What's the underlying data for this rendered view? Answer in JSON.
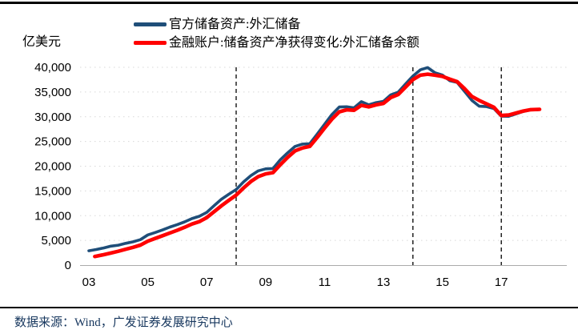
{
  "footer": {
    "source": "数据来源：Wind，广发证券发展研究中心"
  },
  "legend": {
    "items": [
      {
        "label": "官方储备资产:外汇储备",
        "color": "#1F4E79"
      },
      {
        "label": "金融账户:储备资产净获得变化:外汇储备余额",
        "color": "#FF0000"
      }
    ]
  },
  "chart_data": {
    "type": "line",
    "title": "",
    "unit_label": "亿美元",
    "xlabel": "",
    "ylabel": "亿美元",
    "ylim": [
      0,
      40000
    ],
    "xlim": [
      2002.7,
      2018.6
    ],
    "grid": "dotted-horizontal",
    "legend_position": "top-center",
    "dashed_vlines": [
      2008,
      2014,
      2017
    ],
    "y_axis": {
      "tick_values": [
        0,
        5000,
        10000,
        15000,
        20000,
        25000,
        30000,
        35000,
        40000
      ],
      "tick_labels": [
        "0",
        "5,000",
        "10,000",
        "15,000",
        "20,000",
        "25,000",
        "30,000",
        "35,000",
        "40,000"
      ]
    },
    "x_axis": {
      "tick_years": [
        2003,
        2005,
        2007,
        2009,
        2011,
        2013,
        2015,
        2017
      ],
      "tick_labels": [
        "03",
        "05",
        "07",
        "09",
        "11",
        "13",
        "15",
        "17"
      ]
    },
    "style": {
      "gridline_color": "#D8D8D8",
      "axis_color": "#ABABAB",
      "dashed_line_color": "#000000",
      "source_text_color": "#17375E",
      "border_color": "#000000"
    },
    "series": [
      {
        "name": "官方储备资产:外汇储备",
        "color": "#1F4E79",
        "x": [
          2003.0,
          2003.25,
          2003.5,
          2003.75,
          2004.0,
          2004.25,
          2004.5,
          2004.75,
          2005.0,
          2005.25,
          2005.5,
          2005.75,
          2006.0,
          2006.25,
          2006.5,
          2006.75,
          2007.0,
          2007.25,
          2007.5,
          2007.75,
          2008.0,
          2008.25,
          2008.5,
          2008.75,
          2009.0,
          2009.25,
          2009.5,
          2009.75,
          2010.0,
          2010.25,
          2010.5,
          2010.75,
          2011.0,
          2011.25,
          2011.5,
          2011.75,
          2012.0,
          2012.25,
          2012.5,
          2012.75,
          2013.0,
          2013.25,
          2013.5,
          2013.75,
          2014.0,
          2014.25,
          2014.5,
          2014.75,
          2015.0,
          2015.25,
          2015.5,
          2015.75,
          2016.0,
          2016.25,
          2016.5,
          2016.75,
          2017.0,
          2017.25,
          2017.5,
          2017.75,
          2018.0,
          2018.25
        ],
        "values": [
          2900,
          3160,
          3465,
          3839,
          4033,
          4398,
          4706,
          5145,
          6099,
          6591,
          7110,
          7690,
          8189,
          8751,
          9411,
          9879,
          10663,
          12020,
          13326,
          14336,
          15282,
          16822,
          18088,
          19056,
          19460,
          19537,
          21316,
          22726,
          23992,
          24471,
          24543,
          26483,
          28473,
          30447,
          31975,
          32017,
          31811,
          33050,
          32400,
          32851,
          33116,
          34426,
          34967,
          36627,
          38213,
          39481,
          39932,
          38877,
          38430,
          37300,
          36938,
          35141,
          33304,
          32126,
          32052,
          31664,
          30105,
          30091,
          30568,
          31085,
          31399,
          31428
        ]
      },
      {
        "name": "金融账户:储备资产净获得变化:外汇储备余额",
        "color": "#FF0000",
        "x": [
          2003.2,
          2003.5,
          2003.75,
          2004.0,
          2004.25,
          2004.5,
          2004.75,
          2005.0,
          2005.25,
          2005.5,
          2005.75,
          2006.0,
          2006.25,
          2006.5,
          2006.75,
          2007.0,
          2007.25,
          2007.5,
          2007.75,
          2008.0,
          2008.25,
          2008.5,
          2008.75,
          2009.0,
          2009.25,
          2009.5,
          2009.75,
          2010.0,
          2010.25,
          2010.5,
          2010.75,
          2011.0,
          2011.25,
          2011.5,
          2011.75,
          2012.0,
          2012.25,
          2012.5,
          2012.75,
          2013.0,
          2013.25,
          2013.5,
          2013.75,
          2014.0,
          2014.25,
          2014.5,
          2014.75,
          2015.0,
          2015.25,
          2015.5,
          2015.75,
          2016.0,
          2016.25,
          2016.5,
          2016.75,
          2017.0,
          2017.25,
          2017.5,
          2017.75,
          2018.0,
          2018.3
        ],
        "values": [
          1750,
          2100,
          2450,
          2800,
          3200,
          3600,
          4050,
          4850,
          5400,
          5950,
          6500,
          7050,
          7650,
          8300,
          8800,
          9600,
          10800,
          12000,
          13100,
          14150,
          15600,
          16900,
          17900,
          18450,
          18700,
          20300,
          21800,
          23100,
          23700,
          24000,
          25800,
          27700,
          29500,
          31000,
          31400,
          31300,
          32300,
          32000,
          32400,
          32700,
          33900,
          34500,
          36000,
          37500,
          38400,
          38600,
          38400,
          38150,
          37600,
          37100,
          35700,
          34100,
          33300,
          32600,
          31900,
          30250,
          30350,
          30750,
          31150,
          31430,
          31500
        ]
      }
    ]
  }
}
